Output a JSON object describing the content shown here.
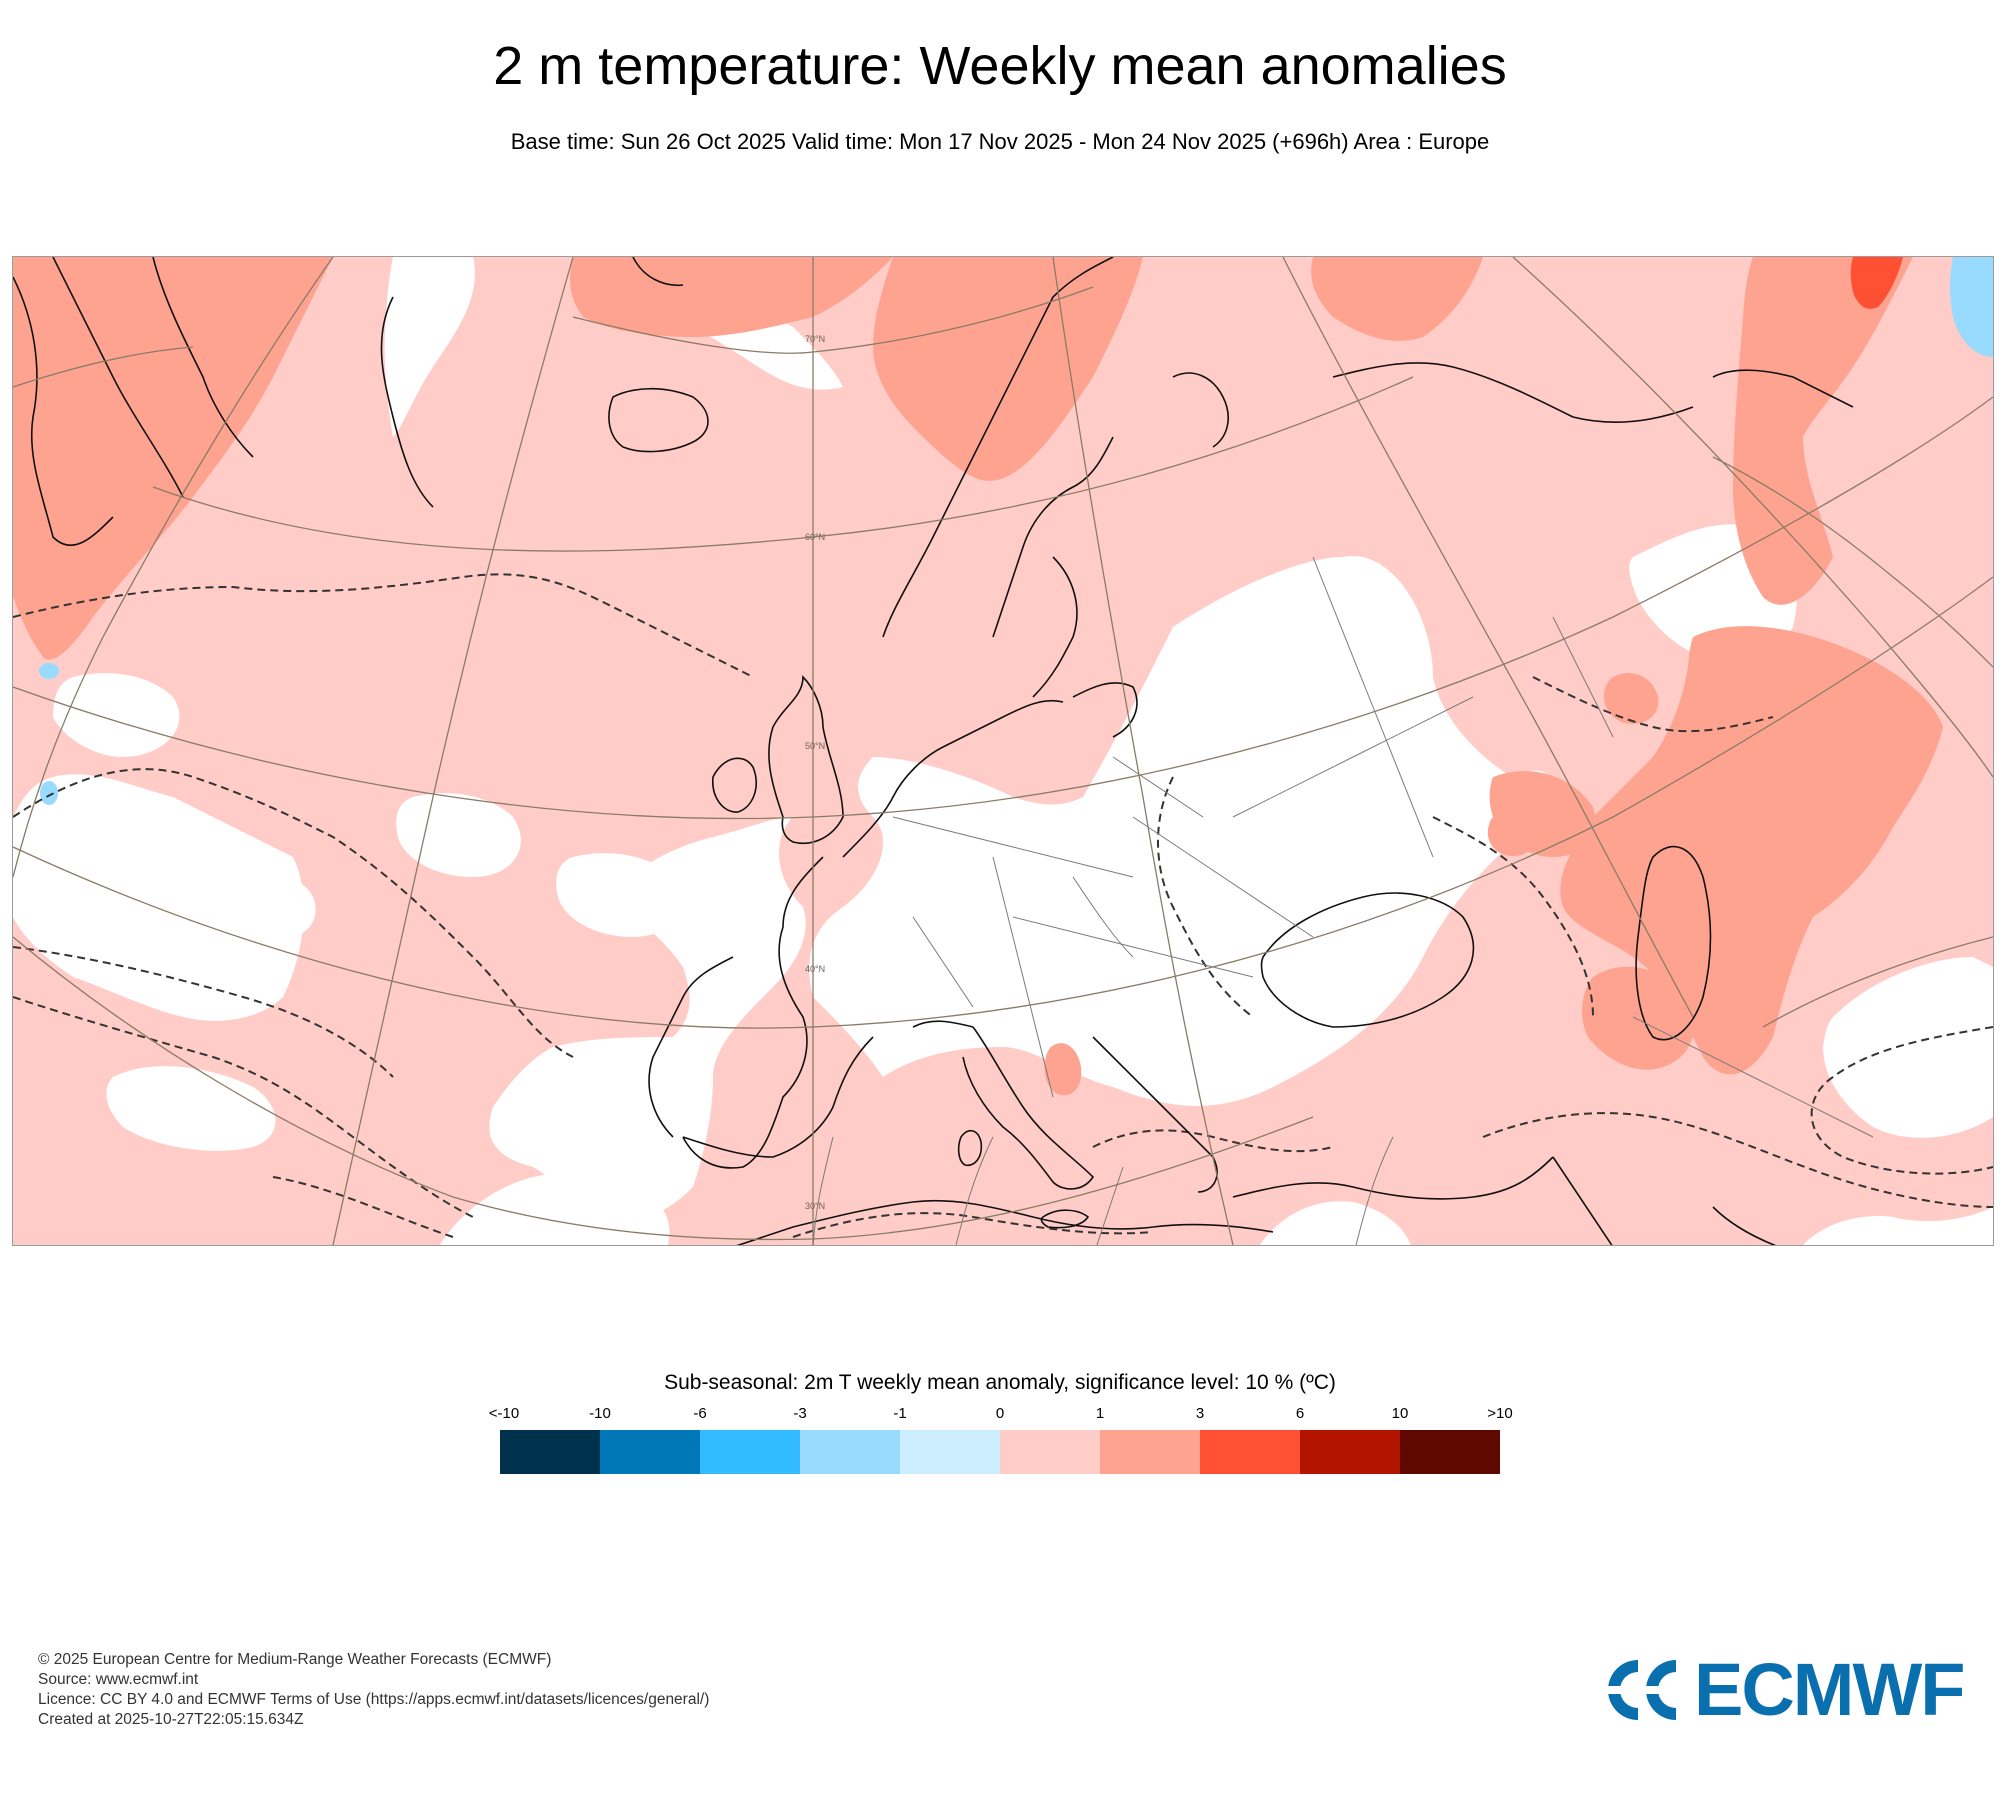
{
  "header": {
    "title": "2 m temperature: Weekly mean anomalies",
    "subtitle": "Base time: Sun 26 Oct 2025 Valid time: Mon 17 Nov 2025 - Mon 24 Nov 2025 (+696h) Area : Europe"
  },
  "map": {
    "area": "Europe",
    "latitude_labels": [
      "70°N",
      "60°N",
      "50°N",
      "40°N",
      "30°N"
    ],
    "colors": {
      "land_outline": "#111111",
      "graticule": "#8a7b67",
      "significance_contour": "#333333"
    }
  },
  "legend": {
    "title": "Sub-seasonal: 2m T weekly mean anomaly, significance level: 10 % (ºC)",
    "tick_labels": [
      "<-10",
      "-10",
      "-6",
      "-3",
      "-1",
      "0",
      "1",
      "3",
      "6",
      "10",
      ">10"
    ],
    "colors": [
      "#00324d",
      "#0077b6",
      "#33bbff",
      "#99daff",
      "#cceeff",
      "#ffccc7",
      "#ffa391",
      "#ff5033",
      "#b31400",
      "#5e0800"
    ]
  },
  "footer": {
    "copyright": "© 2025 European Centre for Medium-Range Weather Forecasts (ECMWF)",
    "source": "Source: www.ecmwf.int",
    "licence": "Licence: CC BY 4.0 and ECMWF Terms of Use (https://apps.ecmwf.int/datasets/licences/general/)",
    "created": "Created at 2025-10-27T22:05:15.634Z"
  },
  "logo": {
    "text": "ECMWF",
    "color": "#0a6fae"
  }
}
